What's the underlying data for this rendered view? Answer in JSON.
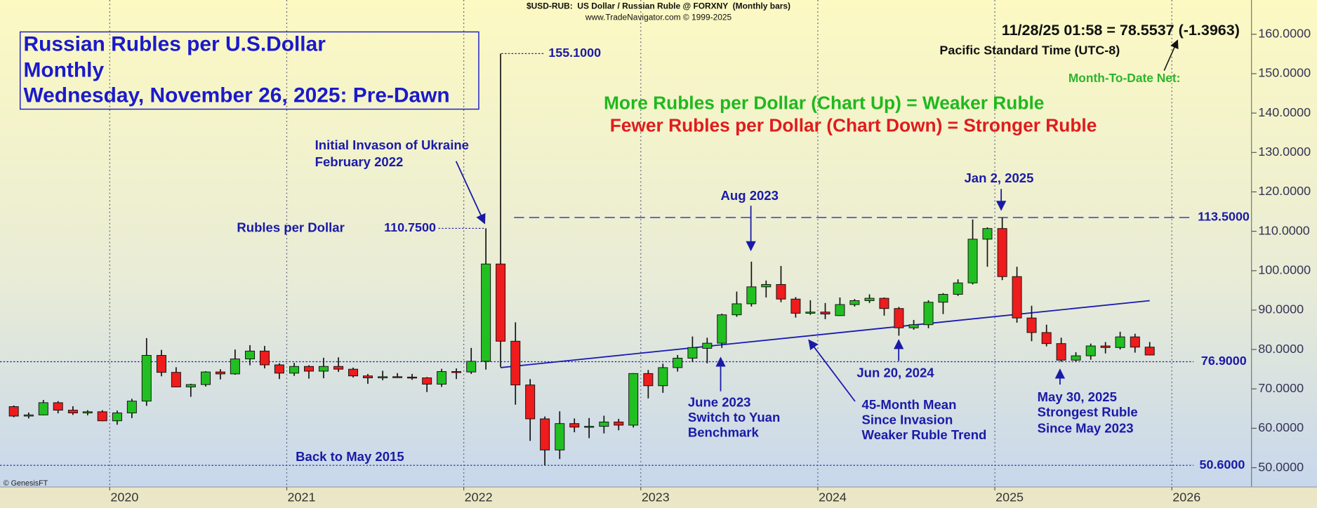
{
  "chart_data": {
    "type": "candlestick",
    "header": [
      "$USD-RUB:  US Dollar / Russian Ruble @ FORXNY  (Monthly bars)",
      "www.TradeNavigator.com © 1999-2025"
    ],
    "title_lines": [
      "Russian Rubles per U.S.Dollar",
      "Monthly",
      "Wednesday, November 26, 2025: Pre-Dawn"
    ],
    "quote": "11/28/25 01:58 = 78.5537 (-1.3963)",
    "timezone": "Pacific Standard Time (UTC-8)",
    "mtd_label": "Month-To-Date Net:",
    "legend_up": "More Rubles per Dollar (Chart Up) = Weaker Ruble",
    "legend_down": "Fewer Rubles per Dollar (Chart Down) = Stronger Ruble",
    "up_color": "#22bf22",
    "down_color": "#ee1c1c",
    "grid": "x",
    "xlim": [
      2019.38,
      2026.45
    ],
    "xticks": [
      2020,
      2021,
      2022,
      2023,
      2024,
      2025,
      2026
    ],
    "ylim": [
      45.1,
      168.7
    ],
    "yticks": [
      {
        "value": 50,
        "label": "50.0000"
      },
      {
        "value": 60,
        "label": "60.0000"
      },
      {
        "value": 70,
        "label": "70.0000"
      },
      {
        "value": 80,
        "label": "80.0000"
      },
      {
        "value": 90,
        "label": "90.0000"
      },
      {
        "value": 100,
        "label": "100.0000"
      },
      {
        "value": 110,
        "label": "110.0000"
      },
      {
        "value": 120,
        "label": "120.0000"
      },
      {
        "value": 130,
        "label": "130.0000"
      },
      {
        "value": 140,
        "label": "140.0000"
      },
      {
        "value": 150,
        "label": "150.0000"
      },
      {
        "value": 160,
        "label": "160.0000"
      }
    ],
    "x": [
      2019.458,
      2019.542,
      2019.625,
      2019.708,
      2019.792,
      2019.875,
      2019.958,
      2020.042,
      2020.125,
      2020.208,
      2020.292,
      2020.375,
      2020.458,
      2020.542,
      2020.625,
      2020.708,
      2020.792,
      2020.875,
      2020.958,
      2021.042,
      2021.125,
      2021.208,
      2021.292,
      2021.375,
      2021.458,
      2021.542,
      2021.625,
      2021.708,
      2021.792,
      2021.875,
      2021.958,
      2022.042,
      2022.125,
      2022.208,
      2022.292,
      2022.375,
      2022.458,
      2022.542,
      2022.625,
      2022.708,
      2022.792,
      2022.875,
      2022.958,
      2023.042,
      2023.125,
      2023.208,
      2023.292,
      2023.375,
      2023.458,
      2023.542,
      2023.625,
      2023.708,
      2023.792,
      2023.875,
      2023.958,
      2024.042,
      2024.125,
      2024.208,
      2024.292,
      2024.375,
      2024.458,
      2024.542,
      2024.625,
      2024.708,
      2024.792,
      2024.875,
      2024.958,
      2025.042,
      2025.125,
      2025.208,
      2025.292,
      2025.375,
      2025.458,
      2025.542,
      2025.625,
      2025.708,
      2025.792,
      2025.875
    ],
    "open": [
      65.5,
      63.1,
      63.4,
      66.5,
      64.6,
      63.9,
      64.2,
      61.9,
      63.9,
      66.9,
      78.5,
      74.2,
      70.5,
      71.1,
      74.3,
      73.8,
      77.6,
      79.6,
      76.1,
      74.0,
      75.7,
      74.5,
      75.7,
      75.0,
      73.3,
      72.8,
      73.1,
      73.0,
      72.8,
      71.2,
      74.4,
      74.3,
      77.0,
      101.7,
      82.1,
      71.0,
      62.4,
      54.5,
      61.2,
      60.3,
      60.5,
      61.6,
      60.8,
      73.9,
      70.8,
      75.4,
      77.8,
      80.3,
      81.6,
      88.8,
      91.6,
      95.9,
      96.5,
      92.8,
      89.2,
      89.5,
      88.6,
      91.4,
      92.4,
      93.0,
      90.4,
      85.5,
      86.3,
      92.0,
      94.0,
      96.9,
      108.0,
      110.7,
      98.5,
      88.0,
      84.3,
      81.5,
      77.3,
      78.4,
      80.9,
      80.5,
      83.2,
      80.6
    ],
    "high": [
      65.8,
      64.0,
      67.2,
      66.9,
      65.6,
      64.6,
      64.6,
      64.5,
      67.5,
      82.9,
      79.9,
      75.5,
      71.3,
      74.5,
      75.0,
      80.0,
      81.1,
      80.9,
      76.5,
      76.6,
      76.0,
      77.9,
      78.0,
      75.4,
      73.8,
      74.6,
      74.0,
      73.8,
      73.0,
      75.1,
      75.2,
      80.4,
      110.75,
      155.1,
      86.9,
      72.5,
      63.0,
      64.3,
      62.5,
      62.6,
      63.2,
      62.4,
      74.0,
      74.8,
      76.4,
      78.6,
      83.3,
      83.0,
      89.1,
      94.7,
      102.3,
      97.5,
      101.2,
      93.3,
      92.5,
      91.8,
      93.2,
      92.8,
      94.0,
      93.2,
      90.8,
      87.5,
      92.5,
      94.3,
      97.8,
      113.0,
      111.0,
      113.5,
      101.0,
      91.1,
      86.3,
      83.0,
      79.3,
      81.5,
      81.9,
      84.5,
      84.0,
      81.9
    ],
    "low": [
      62.8,
      62.5,
      63.3,
      63.8,
      63.4,
      63.3,
      61.8,
      60.9,
      62.6,
      65.7,
      73.2,
      70.4,
      68.0,
      70.6,
      72.4,
      73.6,
      76.0,
      75.2,
      72.5,
      73.3,
      72.6,
      72.7,
      74.3,
      72.9,
      71.3,
      72.2,
      72.8,
      72.3,
      69.2,
      70.5,
      72.5,
      73.8,
      74.9,
      75.5,
      66.0,
      56.8,
      50.6,
      52.2,
      59.0,
      57.5,
      58.7,
      59.5,
      60.2,
      67.6,
      69.0,
      74.4,
      76.8,
      76.5,
      80.4,
      88.3,
      90.9,
      93.2,
      92.0,
      88.1,
      88.8,
      87.7,
      88.5,
      90.9,
      91.8,
      88.6,
      83.5,
      85.0,
      85.4,
      89.0,
      93.6,
      96.5,
      101.0,
      97.6,
      86.8,
      82.1,
      80.8,
      76.9,
      77.0,
      77.4,
      79.0,
      80.0,
      79.2,
      78.5
    ],
    "close": [
      63.1,
      63.4,
      66.5,
      64.6,
      63.9,
      64.2,
      61.9,
      63.9,
      66.9,
      78.5,
      74.2,
      70.5,
      71.1,
      74.3,
      73.8,
      77.6,
      79.6,
      76.1,
      74.0,
      75.7,
      74.5,
      75.7,
      75.0,
      73.3,
      72.8,
      73.1,
      73.0,
      72.8,
      71.2,
      74.4,
      74.3,
      77.0,
      101.7,
      82.1,
      71.0,
      62.4,
      54.5,
      61.2,
      60.3,
      60.5,
      61.6,
      60.8,
      73.9,
      70.8,
      75.4,
      77.8,
      80.5,
      81.6,
      88.8,
      91.6,
      95.9,
      96.5,
      92.8,
      89.2,
      89.5,
      89.0,
      91.4,
      92.4,
      93.0,
      90.4,
      85.5,
      86.3,
      92.0,
      94.0,
      96.9,
      108.0,
      110.7,
      98.5,
      88.0,
      84.3,
      81.5,
      77.3,
      78.4,
      80.9,
      80.5,
      83.2,
      80.6,
      78.6
    ],
    "trend_line": {
      "x": [
        2022.208,
        2025.875
      ],
      "values": [
        75.4,
        92.4
      ],
      "color": "#1a1ab4"
    },
    "levels": [
      {
        "value": 155.1,
        "label": "155.1000"
      },
      {
        "value": 110.75,
        "label": "110.7500"
      },
      {
        "value": 113.5,
        "label": "113.5000"
      },
      {
        "value": 76.9,
        "label": "76.9000"
      },
      {
        "value": 50.6,
        "label": "50.6000"
      }
    ],
    "annotations": [
      {
        "lines": [
          "Initial Invason of Ukraine",
          "February 2022"
        ]
      },
      {
        "lines": [
          "Rubles per Dollar"
        ]
      },
      {
        "lines": [
          "Aug 2023"
        ]
      },
      {
        "lines": [
          "Jan 2, 2025"
        ]
      },
      {
        "lines": [
          "Jun 20, 2024"
        ]
      },
      {
        "lines": [
          "June 2023",
          "Switch to Yuan",
          "Benchmark"
        ]
      },
      {
        "lines": [
          "45-Month Mean",
          "Since Invasion",
          "Weaker Ruble Trend"
        ]
      },
      {
        "lines": [
          "May 30, 2025",
          "Strongest Ruble",
          "Since May 2023"
        ]
      },
      {
        "lines": [
          "Back to May 2015"
        ]
      },
      {
        "lines": [
          "© GenesisFT"
        ]
      }
    ]
  }
}
